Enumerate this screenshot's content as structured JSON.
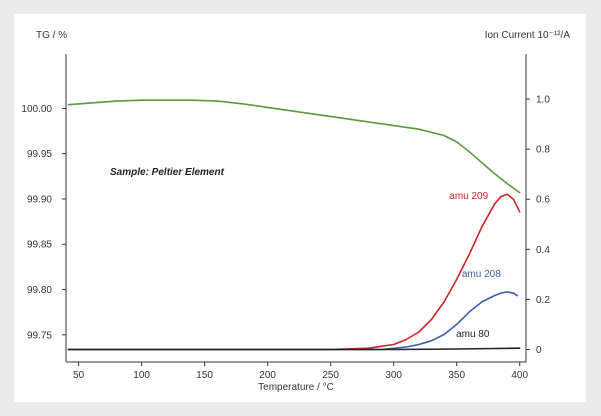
{
  "chart_data": {
    "type": "line",
    "x_axis": {
      "label": "Temperature / °C",
      "range": [
        40,
        405
      ],
      "ticks": [
        50,
        100,
        150,
        200,
        250,
        300,
        350,
        400
      ]
    },
    "y_left": {
      "label": "TG / %",
      "range": [
        99.72,
        100.06
      ],
      "ticks": [
        99.75,
        99.8,
        99.85,
        99.9,
        99.95,
        100.0
      ],
      "tick_labels": [
        "99.75",
        "99.80",
        "99.85",
        "99.90",
        "99.95",
        "100.00"
      ]
    },
    "y_right": {
      "label": "Ion Current 10⁻¹²/A",
      "range": [
        -0.05,
        1.18
      ],
      "ticks": [
        0,
        0.2,
        0.4,
        0.6,
        0.8,
        1.0
      ],
      "tick_labels": [
        "0",
        "0.2",
        "0.4",
        "0.6",
        "0.8",
        "1.0"
      ]
    },
    "annotation": "Sample: Peltier Element",
    "grid": false,
    "series": [
      {
        "name": "TG",
        "axis": "left",
        "color": "#5a9a3c",
        "x": [
          42,
          60,
          80,
          100,
          120,
          140,
          160,
          180,
          200,
          220,
          240,
          260,
          280,
          300,
          320,
          340,
          350,
          360,
          370,
          380,
          390,
          400
        ],
        "y": [
          100.004,
          100.006,
          100.008,
          100.009,
          100.009,
          100.009,
          100.008,
          100.005,
          100.001,
          99.997,
          99.993,
          99.989,
          99.985,
          99.981,
          99.977,
          99.97,
          99.963,
          99.952,
          99.94,
          99.928,
          99.917,
          99.907
        ]
      },
      {
        "name": "amu 209",
        "axis": "right",
        "color": "#cc2229",
        "label_at": [
          375,
          0.6
        ],
        "x": [
          42,
          250,
          280,
          300,
          310,
          320,
          330,
          340,
          350,
          360,
          370,
          380,
          385,
          390,
          395,
          400
        ],
        "y": [
          0,
          0,
          0.005,
          0.02,
          0.04,
          0.07,
          0.12,
          0.19,
          0.28,
          0.38,
          0.49,
          0.58,
          0.61,
          0.62,
          0.6,
          0.55
        ]
      },
      {
        "name": "amu 208",
        "axis": "right",
        "color": "#3a5ea6",
        "label_at": [
          385,
          0.29
        ],
        "x": [
          42,
          290,
          310,
          320,
          330,
          340,
          350,
          360,
          370,
          380,
          385,
          390,
          395,
          398
        ],
        "y": [
          0,
          0,
          0.01,
          0.02,
          0.035,
          0.06,
          0.1,
          0.15,
          0.19,
          0.215,
          0.225,
          0.23,
          0.225,
          0.215
        ]
      },
      {
        "name": "amu 80",
        "axis": "right",
        "color": "#222222",
        "label_at": [
          376,
          0.05
        ],
        "x": [
          42,
          300,
          350,
          380,
          400
        ],
        "y": [
          0,
          0,
          0.002,
          0.004,
          0.005
        ]
      }
    ]
  }
}
